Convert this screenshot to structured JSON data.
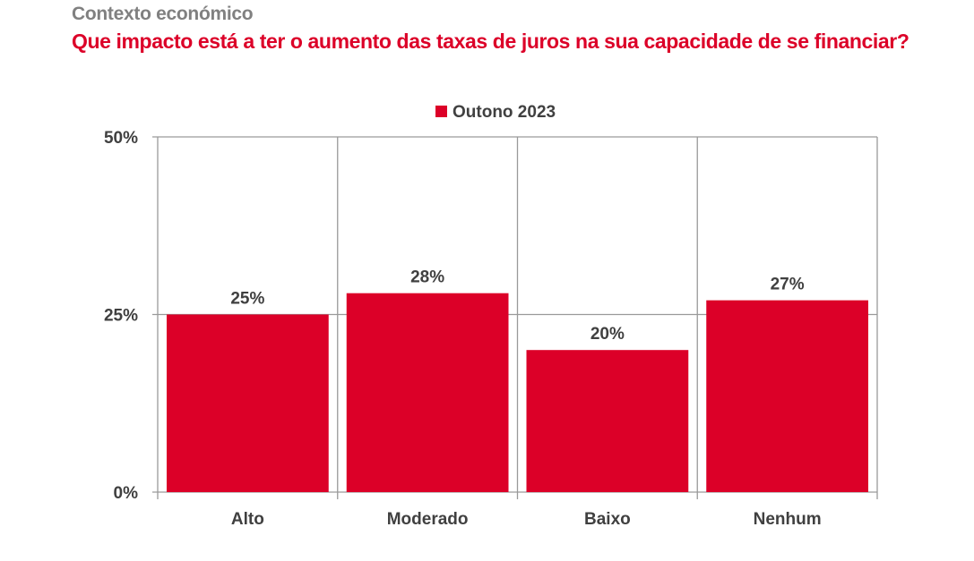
{
  "header": {
    "kicker": "Contexto económico",
    "title": "Que impacto está a ter o aumento das taxas de juros na sua capacidade de se financiar?"
  },
  "chart_data": {
    "type": "bar",
    "title": "Que impacto está a ter o aumento das taxas de juros na sua capacidade de se financiar?",
    "subtitle": "Contexto económico",
    "categories": [
      "Alto",
      "Moderado",
      "Baixo",
      "Nenhum"
    ],
    "series": [
      {
        "name": "Outono 2023",
        "color": "#dc0028",
        "values": [
          25,
          28,
          20,
          27
        ]
      }
    ],
    "data_labels": [
      "25%",
      "28%",
      "20%",
      "27%"
    ],
    "xlabel": "",
    "ylabel": "",
    "ylim": [
      0,
      50
    ],
    "yticks": [
      0,
      25,
      50
    ],
    "ytick_labels": [
      "0%",
      "25%",
      "50%"
    ],
    "grid": true,
    "legend": "top-center"
  }
}
